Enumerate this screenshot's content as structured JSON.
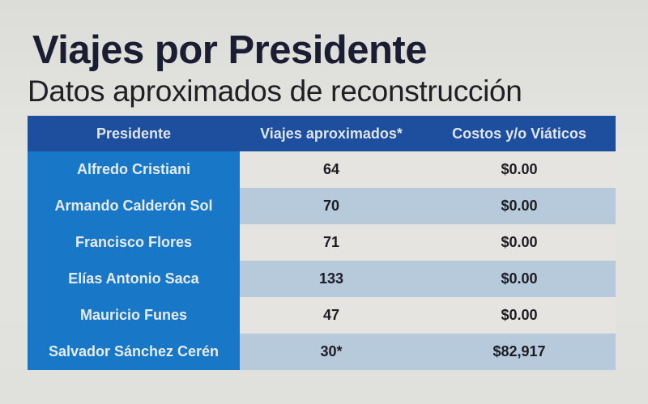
{
  "header": {
    "title": "Viajes por Presidente",
    "subtitle": "Datos aproximados de reconstrucción"
  },
  "table": {
    "columns": [
      "Presidente",
      "Viajes aproximados*",
      "Costos y/o Viáticos"
    ],
    "rows": [
      {
        "president": "Alfredo Cristiani",
        "trips": "64",
        "cost": "$0.00"
      },
      {
        "president": "Armando Calderón Sol",
        "trips": "70",
        "cost": "$0.00"
      },
      {
        "president": "Francisco Flores",
        "trips": "71",
        "cost": "$0.00"
      },
      {
        "president": "Elías Antonio Saca",
        "trips": "133",
        "cost": "$0.00"
      },
      {
        "president": "Mauricio Funes",
        "trips": "47",
        "cost": "$0.00"
      },
      {
        "president": "Salvador Sánchez Cerén",
        "trips": "30*",
        "cost": "$82,917"
      }
    ]
  },
  "colors": {
    "header_bg": "#1d4f9e",
    "name_col_bg": "#1877c6",
    "row_light": "#e5e4e0",
    "row_blue": "#b7cadc",
    "title_text": "#1b1d33"
  }
}
